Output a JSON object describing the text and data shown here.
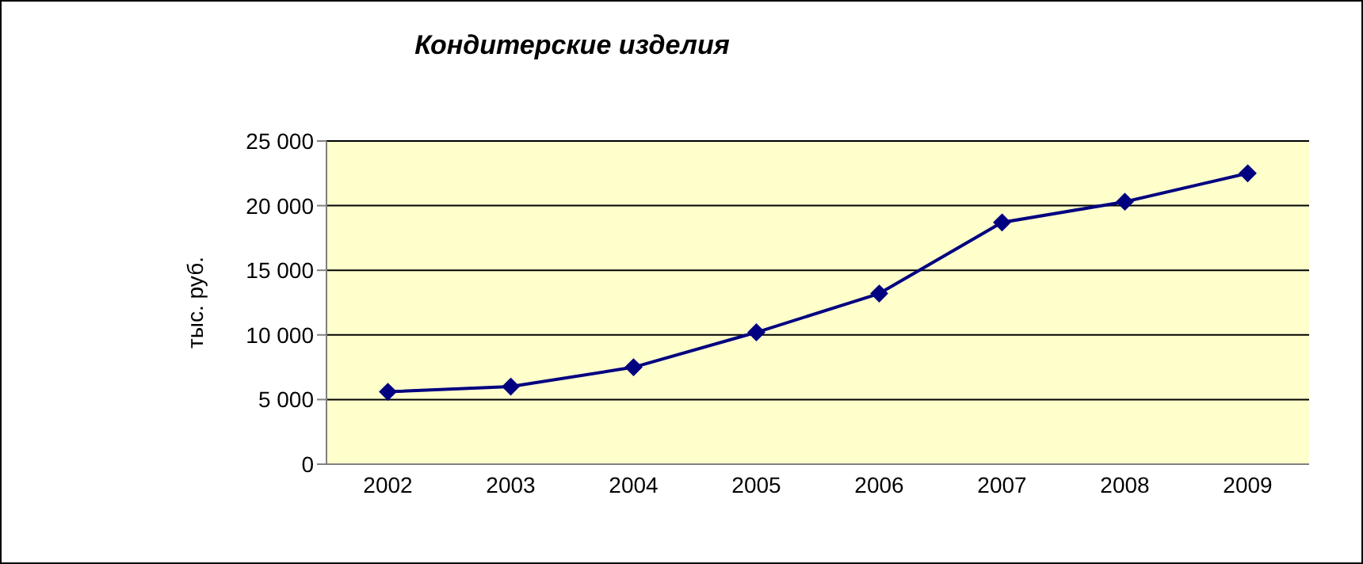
{
  "chart_data": {
    "type": "line",
    "title": "Кондитерские изделия",
    "ylabel": "тыс. руб.",
    "categories": [
      "2002",
      "2003",
      "2004",
      "2005",
      "2006",
      "2007",
      "2008",
      "2009"
    ],
    "series": [
      {
        "color": "#000080",
        "values": [
          5600,
          6000,
          7500,
          10200,
          13200,
          18700,
          20300,
          22500
        ]
      }
    ],
    "ylim": [
      0,
      25000
    ],
    "yticks": [
      0,
      5000,
      10000,
      15000,
      20000,
      25000
    ],
    "grid": "y",
    "marker": "diamond",
    "line_style": "solid"
  }
}
